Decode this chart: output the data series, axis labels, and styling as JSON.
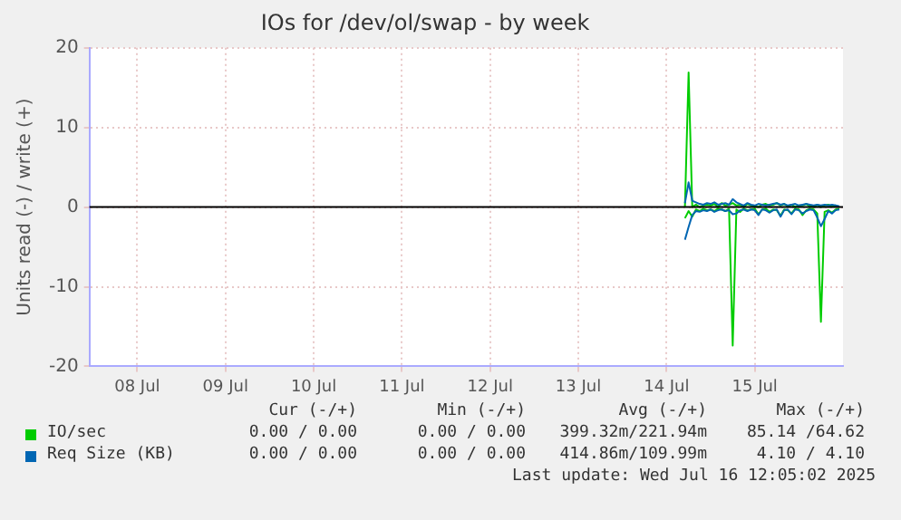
{
  "chart_data": {
    "type": "line",
    "title": "IOs for /dev/ol/swap - by week",
    "ylabel": "Units read (-) / write (+)",
    "x": [
      "2025-07-14T17:00",
      "2025-07-14T18:00",
      "2025-07-14T19:00",
      "2025-07-14T20:00",
      "2025-07-14T21:00",
      "2025-07-14T22:00",
      "2025-07-14T23:00",
      "2025-07-15T00:00",
      "2025-07-15T01:00",
      "2025-07-15T02:00",
      "2025-07-15T03:00",
      "2025-07-15T04:00",
      "2025-07-15T05:00",
      "2025-07-15T06:00",
      "2025-07-15T07:00",
      "2025-07-15T08:00",
      "2025-07-15T09:00",
      "2025-07-15T10:00",
      "2025-07-15T11:00",
      "2025-07-15T12:00",
      "2025-07-15T13:00",
      "2025-07-15T14:00",
      "2025-07-15T15:00",
      "2025-07-15T16:00",
      "2025-07-15T17:00",
      "2025-07-15T18:00",
      "2025-07-15T19:00",
      "2025-07-15T20:00",
      "2025-07-15T21:00",
      "2025-07-15T22:00",
      "2025-07-15T23:00",
      "2025-07-16T00:00",
      "2025-07-16T01:00",
      "2025-07-16T02:00",
      "2025-07-16T03:00",
      "2025-07-16T04:00",
      "2025-07-16T05:00",
      "2025-07-16T06:00",
      "2025-07-16T07:00",
      "2025-07-16T08:00",
      "2025-07-16T09:00",
      "2025-07-16T10:00",
      "2025-07-16T11:00"
    ],
    "series": [
      {
        "name": "IO/sec",
        "color": "#00cc00",
        "values": [
          0,
          16.9,
          0,
          0.3,
          0,
          0.2,
          0.3,
          0.2,
          0.4,
          0,
          0.5,
          0.2,
          0.3,
          0.5,
          0.2,
          0.3,
          0,
          0.4,
          0.2,
          0.1,
          0,
          0.3,
          0.4,
          0.2,
          0.3,
          0.5,
          0.2,
          0.4,
          0.1,
          0.3,
          0,
          0.2,
          0.2,
          0.4,
          0.1,
          0,
          0.3,
          0,
          0.2,
          0.3,
          0.1,
          0.2,
          0
        ]
      },
      {
        "color": "#00cc00",
        "values": [
          -1.4,
          -0.5,
          -1.2,
          -0.3,
          -0.5,
          -0.2,
          -0.4,
          -0.3,
          -0.5,
          -0.2,
          -0.3,
          -0.5,
          -0.2,
          -17.4,
          -0.3,
          -0.6,
          -0.2,
          -0.4,
          -0.3,
          -0.2,
          -0.9,
          -0.3,
          -0.2,
          -0.6,
          -0.3,
          -0.4,
          -1.1,
          -0.3,
          -0.4,
          -0.8,
          -0.2,
          -0.3,
          -1.0,
          -0.4,
          -0.2,
          -0.3,
          -0.8,
          -14.4,
          -0.6,
          -0.4,
          -0.7,
          -0.3,
          -0.2
        ]
      },
      {
        "name": "Req Size (KB)",
        "color": "#0066b3",
        "values": [
          0.5,
          3.1,
          0.8,
          0.6,
          0.4,
          0.3,
          0.5,
          0.4,
          0.6,
          0.3,
          0.4,
          0.5,
          0.3,
          1.0,
          0.6,
          0.4,
          0.2,
          0.5,
          0.3,
          0.2,
          0.4,
          0.3,
          0.2,
          0.3,
          0.4,
          0.5,
          0.3,
          0.4,
          0.2,
          0.3,
          0.4,
          0.2,
          0.3,
          0.4,
          0.3,
          0.2,
          0.3,
          0.2,
          0.3,
          0.2,
          0.3,
          0.2,
          0.1
        ]
      },
      {
        "color": "#0066b3",
        "values": [
          -4.1,
          -2.5,
          -1.0,
          -0.5,
          -0.6,
          -0.4,
          -0.5,
          -0.3,
          -0.6,
          -0.4,
          -0.3,
          -0.5,
          -0.4,
          -0.9,
          -0.8,
          -0.4,
          -0.3,
          -0.5,
          -0.3,
          -0.4,
          -1.0,
          -0.3,
          -0.4,
          -0.7,
          -0.4,
          -0.3,
          -1.2,
          -0.4,
          -0.3,
          -0.9,
          -0.3,
          -0.4,
          -0.8,
          -0.5,
          -0.3,
          -0.4,
          -1.3,
          -2.4,
          -1.5,
          -0.5,
          -0.8,
          -0.4,
          -0.3
        ]
      }
    ],
    "xlim": [
      "2025-07-07T23:00",
      "2025-07-16T12:00"
    ],
    "xticks": [
      {
        "value": "2025-07-08T12:00",
        "label": "08 Jul"
      },
      {
        "value": "2025-07-09T12:00",
        "label": "09 Jul"
      },
      {
        "value": "2025-07-10T12:00",
        "label": "10 Jul"
      },
      {
        "value": "2025-07-11T12:00",
        "label": "11 Jul"
      },
      {
        "value": "2025-07-12T12:00",
        "label": "12 Jul"
      },
      {
        "value": "2025-07-13T12:00",
        "label": "13 Jul"
      },
      {
        "value": "2025-07-14T12:00",
        "label": "14 Jul"
      },
      {
        "value": "2025-07-15T12:00",
        "label": "15 Jul"
      }
    ],
    "ylim": [
      -20,
      20
    ],
    "yticks": [
      -20,
      -10,
      0,
      10,
      20
    ],
    "grid": true,
    "legend": "bottom",
    "marker": "none",
    "line_style": "solid",
    "ref_lines": [
      {
        "axis": "y",
        "value": 0,
        "color": "#000000"
      }
    ],
    "annotations": [
      "Cur (-/+)",
      "Min (-/+)",
      "Avg (-/+)",
      "Max (-/+)",
      "0.00 / 0.00",
      "0.00 / 0.00",
      "399.32m/221.94m",
      "85.14 /64.62",
      "0.00 / 0.00",
      "0.00 / 0.00",
      "414.86m/109.99m",
      "4.10 / 4.10",
      "Last update: Wed Jul 16 12:05:02 2025"
    ]
  }
}
